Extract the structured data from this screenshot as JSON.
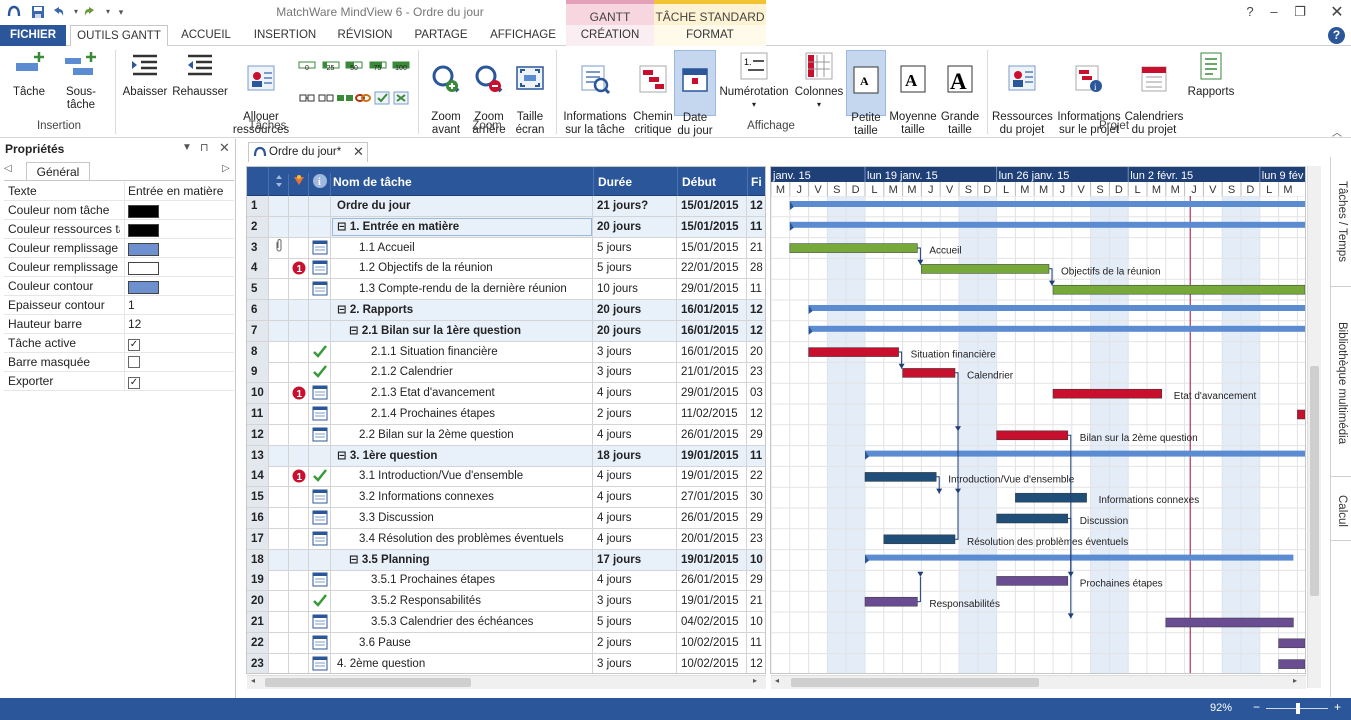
{
  "window": {
    "title": "MatchWare MindView 6 - Ordre du jour",
    "context_gantt": "GANTT",
    "context_tache": "TÂCHE STANDARD"
  },
  "tabs": [
    "FICHIER",
    "OUTILS GANTT",
    "ACCUEIL",
    "INSERTION",
    "RÉVISION",
    "PARTAGE",
    "AFFICHAGE",
    "CRÉATION",
    "FORMAT"
  ],
  "ribbon": {
    "insertion": {
      "label": "Insertion",
      "tache": "Tâche",
      "sous_tache": "Sous-tâche"
    },
    "taches": {
      "label": "Tâches",
      "abaisser": "Abaisser",
      "rehausser": "Rehausser",
      "allouer": "Allouer\nressources",
      "pct": [
        "0",
        "25",
        "50",
        "75",
        "100"
      ]
    },
    "zoom": {
      "label": "Zoom",
      "avant": "Zoom\navant",
      "arriere": "Zoom\narrière",
      "ecran": "Taille\nécran"
    },
    "affichage": {
      "label": "Affichage",
      "infos": "Informations\nsur la tâche",
      "chemin": "Chemin\ncritique",
      "date": "Date\ndu jour",
      "numerotation": "Numérotation",
      "colonnes": "Colonnes",
      "petite": "Petite\ntaille",
      "moyenne": "Moyenne\ntaille",
      "grande": "Grande\ntaille"
    },
    "projet": {
      "label": "Projet",
      "ressources": "Ressources\ndu projet",
      "infos": "Informations\nsur le projet",
      "calendriers": "Calendriers\ndu projet",
      "rapports": "Rapports"
    }
  },
  "properties": {
    "title": "Propriétés",
    "tab": "Général",
    "rows": [
      {
        "k": "Texte",
        "v": "Entrée en matière"
      },
      {
        "k": "Couleur nom tâche",
        "swatch": "#000000"
      },
      {
        "k": "Couleur ressources tâ",
        "swatch": "#000000"
      },
      {
        "k": "Couleur remplissage",
        "swatch": "#6f90cf"
      },
      {
        "k": "Couleur remplissage",
        "swatch": "#ffffff"
      },
      {
        "k": "Couleur contour",
        "swatch": "#6f90cf"
      },
      {
        "k": "Epaisseur contour",
        "v": "1"
      },
      {
        "k": "Hauteur barre",
        "v": "12"
      },
      {
        "k": "Tâche active",
        "check": true
      },
      {
        "k": "Barre masquée",
        "check": false
      },
      {
        "k": "Exporter",
        "check": true
      }
    ]
  },
  "document_tab": "Ordre du jour*",
  "grid": {
    "headers": {
      "name": "Nom de tâche",
      "duree": "Durée",
      "debut": "Début",
      "fin": "Fi"
    },
    "rows": [
      {
        "n": "1",
        "name": "Ordre du jour",
        "dur": "21 jours?",
        "deb": "15/01/2015",
        "fin": "12",
        "sum": true,
        "lvl": 0,
        "box": false,
        "icon": ""
      },
      {
        "n": "2",
        "name": "1. Entrée en matière",
        "dur": "20 jours",
        "deb": "15/01/2015",
        "fin": "11",
        "sum": true,
        "lvl": 0,
        "box": true,
        "icon": ""
      },
      {
        "n": "3",
        "name": "1.1 Accueil",
        "dur": "5 jours",
        "deb": "15/01/2015",
        "fin": "21",
        "lvl": 1,
        "icon": "cal",
        "clip": true
      },
      {
        "n": "4",
        "name": "1.2 Objectifs de la réunion",
        "dur": "5 jours",
        "deb": "22/01/2015",
        "fin": "28",
        "lvl": 1,
        "icon": "cal",
        "alert": true
      },
      {
        "n": "5",
        "name": "1.3 Compte-rendu de la dernière réunion",
        "dur": "10 jours",
        "deb": "29/01/2015",
        "fin": "11",
        "lvl": 1,
        "icon": "cal"
      },
      {
        "n": "6",
        "name": "2. Rapports",
        "dur": "20 jours",
        "deb": "16/01/2015",
        "fin": "12",
        "sum": true,
        "lvl": 0,
        "box": true,
        "icon": ""
      },
      {
        "n": "7",
        "name": "2.1 Bilan sur la 1ère question",
        "dur": "20 jours",
        "deb": "16/01/2015",
        "fin": "12",
        "sum": true,
        "lvl": 1,
        "box": true,
        "icon": ""
      },
      {
        "n": "8",
        "name": "2.1.1 Situation financière",
        "dur": "3 jours",
        "deb": "16/01/2015",
        "fin": "20",
        "lvl": 2,
        "icon": "check"
      },
      {
        "n": "9",
        "name": "2.1.2 Calendrier",
        "dur": "3 jours",
        "deb": "21/01/2015",
        "fin": "23",
        "lvl": 2,
        "icon": "check"
      },
      {
        "n": "10",
        "name": "2.1.3 Etat d'avancement",
        "dur": "4 jours",
        "deb": "29/01/2015",
        "fin": "03",
        "lvl": 2,
        "icon": "cal",
        "alert": true
      },
      {
        "n": "11",
        "name": "2.1.4 Prochaines étapes",
        "dur": "2 jours",
        "deb": "11/02/2015",
        "fin": "12",
        "lvl": 2,
        "icon": "cal"
      },
      {
        "n": "12",
        "name": "2.2 Bilan sur la 2ème question",
        "dur": "4 jours",
        "deb": "26/01/2015",
        "fin": "29",
        "lvl": 1,
        "icon": "cal"
      },
      {
        "n": "13",
        "name": "3. 1ère question",
        "dur": "18 jours",
        "deb": "19/01/2015",
        "fin": "11",
        "sum": true,
        "lvl": 0,
        "box": true,
        "icon": ""
      },
      {
        "n": "14",
        "name": "3.1 Introduction/Vue d'ensemble",
        "dur": "4 jours",
        "deb": "19/01/2015",
        "fin": "22",
        "lvl": 1,
        "icon": "check",
        "alert": true
      },
      {
        "n": "15",
        "name": "3.2 Informations connexes",
        "dur": "4 jours",
        "deb": "27/01/2015",
        "fin": "30",
        "lvl": 1,
        "icon": "cal"
      },
      {
        "n": "16",
        "name": "3.3 Discussion",
        "dur": "4 jours",
        "deb": "26/01/2015",
        "fin": "29",
        "lvl": 1,
        "icon": "cal"
      },
      {
        "n": "17",
        "name": "3.4 Résolution des problèmes éventuels",
        "dur": "4 jours",
        "deb": "20/01/2015",
        "fin": "23",
        "lvl": 1,
        "icon": "cal"
      },
      {
        "n": "18",
        "name": "3.5 Planning",
        "dur": "17 jours",
        "deb": "19/01/2015",
        "fin": "10",
        "sum": true,
        "lvl": 1,
        "box": true,
        "icon": ""
      },
      {
        "n": "19",
        "name": "3.5.1 Prochaines étapes",
        "dur": "4 jours",
        "deb": "26/01/2015",
        "fin": "29",
        "lvl": 2,
        "icon": "cal"
      },
      {
        "n": "20",
        "name": "3.5.2 Responsabilités",
        "dur": "3 jours",
        "deb": "19/01/2015",
        "fin": "21",
        "lvl": 2,
        "icon": "check"
      },
      {
        "n": "21",
        "name": "3.5.3 Calendrier des échéances",
        "dur": "5 jours",
        "deb": "04/02/2015",
        "fin": "10",
        "lvl": 2,
        "icon": "cal"
      },
      {
        "n": "22",
        "name": "3.6 Pause",
        "dur": "2 jours",
        "deb": "10/02/2015",
        "fin": "11",
        "lvl": 1,
        "icon": "cal"
      },
      {
        "n": "23",
        "name": "4. 2ème question",
        "dur": "3 jours",
        "deb": "10/02/2015",
        "fin": "12",
        "lvl": 0,
        "icon": "cal"
      }
    ]
  },
  "gantt": {
    "weeks": [
      "janv. 15",
      "lun 19 janv. 15",
      "lun 26 janv. 15",
      "lun 2 févr. 15",
      "lun 9 fév"
    ],
    "days": [
      "M",
      "J",
      "V",
      "S",
      "D",
      "L",
      "M",
      "M",
      "J",
      "V",
      "S",
      "D",
      "L",
      "M",
      "M",
      "J",
      "V",
      "S",
      "D",
      "L",
      "M",
      "M",
      "J",
      "V",
      "S",
      "D",
      "L",
      "M"
    ],
    "labels": {
      "3": "Accueil",
      "4": "Objectifs de la réunion",
      "8": "Situation financière",
      "9": "Calendrier",
      "10": "Etat d'avancement",
      "12": "Bilan sur la 2ème question",
      "14": "Introduction/Vue d'ensemble",
      "15": "Informations connexes",
      "16": "Discussion",
      "17": "Résolution des problèmes éventuels",
      "19": "Prochaines étapes",
      "20": "Responsabilités"
    },
    "colors": {
      "summary": "#2b579a",
      "green": "#76a83a",
      "red": "#c8102e",
      "darkblue": "#1f4e79",
      "purple": "#6a4c93",
      "today": "#b03060"
    }
  },
  "side_tabs": [
    "Tâches / Temps",
    "Bibliothèque multimédia",
    "Calcul"
  ],
  "status": {
    "zoom": "92%"
  }
}
